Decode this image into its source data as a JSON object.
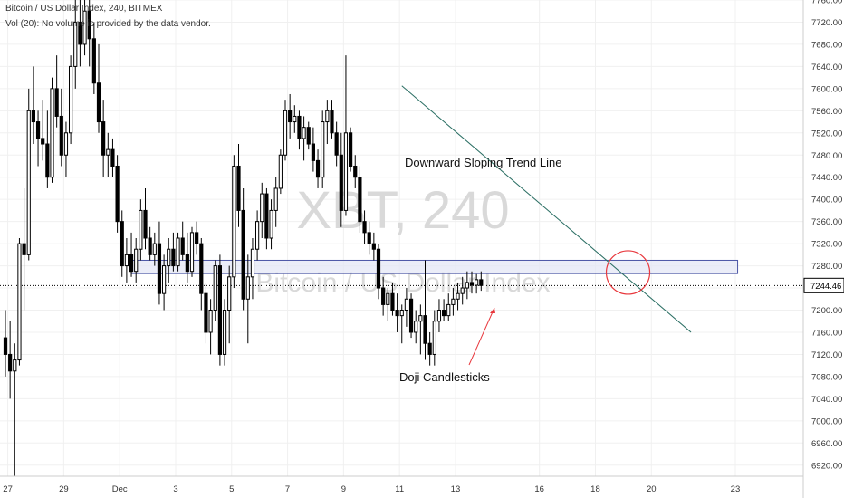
{
  "header": {
    "symbol_line": "Bitcoin / US Dollar Index, 240, BITMEX",
    "volume_line": "Vol (20): No volume is provided by the data vendor."
  },
  "watermark": {
    "ticker": "XBT, 240",
    "name": "Bitcoin / US Dollar Index"
  },
  "annotations": {
    "trend_line_label": "Downward Sloping Trend Line",
    "doji_label": "Doji Candlesticks"
  },
  "last_price": "7244.46",
  "colors": {
    "candle": "#000000",
    "trend_line": "#2a6e63",
    "support_zone_fill": "#e3e6f5",
    "support_zone_border": "#4a55a5",
    "circle": "#e8383d",
    "arrow": "#e8383d",
    "price_tag_bg": "#ffffff",
    "grid": "#f0f0f0",
    "axis_text": "#333333",
    "watermark": "#d9d9d9"
  },
  "chart_data": {
    "type": "candlestick",
    "timeframe": "240",
    "y_axis": {
      "ylim": [
        6900,
        7760
      ],
      "ticks": [
        6920,
        6960,
        7000,
        7040,
        7080,
        7120,
        7160,
        7200,
        7240,
        7280,
        7320,
        7360,
        7400,
        7440,
        7480,
        7520,
        7560,
        7600,
        7640,
        7680,
        7720,
        7760
      ]
    },
    "x_axis": {
      "ticks": [
        {
          "label": "27",
          "i": 0.5
        },
        {
          "label": "29",
          "i": 12.5
        },
        {
          "label": "Dec",
          "i": 24.5
        },
        {
          "label": "3",
          "i": 36.5
        },
        {
          "label": "5",
          "i": 48.5
        },
        {
          "label": "7",
          "i": 60.5
        },
        {
          "label": "9",
          "i": 72.5
        },
        {
          "label": "11",
          "i": 84.5
        },
        {
          "label": "13",
          "i": 96.5
        },
        {
          "label": "16",
          "i": 114.5
        },
        {
          "label": "18",
          "i": 126.5
        },
        {
          "label": "20",
          "i": 138.5
        },
        {
          "label": "23",
          "i": 156.5
        }
      ]
    },
    "candles": [
      [
        7150,
        7200,
        7080,
        7120
      ],
      [
        7120,
        7180,
        7040,
        7090
      ],
      [
        7090,
        7140,
        6900,
        7110
      ],
      [
        7110,
        7330,
        7100,
        7320
      ],
      [
        7320,
        7420,
        7200,
        7300
      ],
      [
        7300,
        7600,
        7290,
        7560
      ],
      [
        7560,
        7640,
        7500,
        7540
      ],
      [
        7540,
        7560,
        7460,
        7510
      ],
      [
        7510,
        7580,
        7470,
        7500
      ],
      [
        7500,
        7560,
        7420,
        7440
      ],
      [
        7440,
        7620,
        7430,
        7600
      ],
      [
        7600,
        7660,
        7530,
        7550
      ],
      [
        7550,
        7600,
        7460,
        7480
      ],
      [
        7480,
        7540,
        7440,
        7520
      ],
      [
        7520,
        7660,
        7500,
        7640
      ],
      [
        7640,
        7760,
        7600,
        7720
      ],
      [
        7720,
        7780,
        7640,
        7680
      ],
      [
        7680,
        7760,
        7660,
        7740
      ],
      [
        7740,
        7770,
        7640,
        7690
      ],
      [
        7690,
        7720,
        7590,
        7610
      ],
      [
        7610,
        7680,
        7520,
        7540
      ],
      [
        7540,
        7580,
        7440,
        7480
      ],
      [
        7480,
        7520,
        7440,
        7490
      ],
      [
        7490,
        7510,
        7440,
        7460
      ],
      [
        7460,
        7480,
        7340,
        7360
      ],
      [
        7360,
        7380,
        7260,
        7280
      ],
      [
        7280,
        7330,
        7250,
        7300
      ],
      [
        7300,
        7340,
        7260,
        7270
      ],
      [
        7270,
        7330,
        7250,
        7310
      ],
      [
        7310,
        7400,
        7290,
        7380
      ],
      [
        7380,
        7420,
        7310,
        7330
      ],
      [
        7330,
        7350,
        7290,
        7300
      ],
      [
        7300,
        7340,
        7280,
        7320
      ],
      [
        7320,
        7360,
        7210,
        7230
      ],
      [
        7230,
        7300,
        7200,
        7280
      ],
      [
        7280,
        7330,
        7250,
        7310
      ],
      [
        7310,
        7340,
        7270,
        7280
      ],
      [
        7280,
        7340,
        7270,
        7330
      ],
      [
        7330,
        7360,
        7290,
        7300
      ],
      [
        7300,
        7340,
        7250,
        7270
      ],
      [
        7270,
        7350,
        7260,
        7340
      ],
      [
        7340,
        7360,
        7300,
        7320
      ],
      [
        7320,
        7330,
        7200,
        7230
      ],
      [
        7230,
        7250,
        7140,
        7160
      ],
      [
        7160,
        7220,
        7120,
        7200
      ],
      [
        7200,
        7290,
        7180,
        7280
      ],
      [
        7280,
        7300,
        7100,
        7120
      ],
      [
        7120,
        7220,
        7100,
        7200
      ],
      [
        7200,
        7280,
        7140,
        7260
      ],
      [
        7260,
        7480,
        7240,
        7460
      ],
      [
        7460,
        7500,
        7350,
        7380
      ],
      [
        7380,
        7420,
        7200,
        7220
      ],
      [
        7220,
        7300,
        7140,
        7260
      ],
      [
        7260,
        7330,
        7220,
        7310
      ],
      [
        7310,
        7380,
        7290,
        7360
      ],
      [
        7360,
        7430,
        7330,
        7410
      ],
      [
        7410,
        7420,
        7310,
        7330
      ],
      [
        7330,
        7400,
        7310,
        7380
      ],
      [
        7380,
        7440,
        7350,
        7420
      ],
      [
        7420,
        7490,
        7410,
        7480
      ],
      [
        7480,
        7580,
        7470,
        7560
      ],
      [
        7560,
        7590,
        7510,
        7540
      ],
      [
        7540,
        7570,
        7520,
        7550
      ],
      [
        7550,
        7560,
        7490,
        7510
      ],
      [
        7510,
        7550,
        7470,
        7530
      ],
      [
        7530,
        7540,
        7490,
        7500
      ],
      [
        7500,
        7530,
        7450,
        7470
      ],
      [
        7470,
        7490,
        7420,
        7440
      ],
      [
        7440,
        7560,
        7420,
        7540
      ],
      [
        7540,
        7580,
        7500,
        7560
      ],
      [
        7560,
        7580,
        7510,
        7520
      ],
      [
        7520,
        7540,
        7460,
        7480
      ],
      [
        7480,
        7520,
        7350,
        7380
      ],
      [
        7380,
        7660,
        7370,
        7520
      ],
      [
        7520,
        7530,
        7450,
        7460
      ],
      [
        7460,
        7480,
        7420,
        7440
      ],
      [
        7440,
        7460,
        7340,
        7360
      ],
      [
        7360,
        7380,
        7320,
        7340
      ],
      [
        7340,
        7360,
        7300,
        7320
      ],
      [
        7320,
        7340,
        7290,
        7310
      ],
      [
        7310,
        7320,
        7220,
        7240
      ],
      [
        7240,
        7260,
        7190,
        7210
      ],
      [
        7210,
        7240,
        7180,
        7230
      ],
      [
        7230,
        7250,
        7190,
        7200
      ],
      [
        7200,
        7230,
        7160,
        7190
      ],
      [
        7190,
        7210,
        7140,
        7200
      ],
      [
        7200,
        7240,
        7170,
        7220
      ],
      [
        7220,
        7230,
        7150,
        7160
      ],
      [
        7160,
        7200,
        7140,
        7180
      ],
      [
        7180,
        7210,
        7120,
        7190
      ],
      [
        7190,
        7290,
        7110,
        7140
      ],
      [
        7140,
        7160,
        7100,
        7120
      ],
      [
        7120,
        7200,
        7100,
        7180
      ],
      [
        7180,
        7220,
        7160,
        7200
      ],
      [
        7200,
        7220,
        7180,
        7190
      ],
      [
        7190,
        7230,
        7180,
        7210
      ],
      [
        7210,
        7240,
        7190,
        7220
      ],
      [
        7220,
        7250,
        7200,
        7230
      ],
      [
        7230,
        7260,
        7210,
        7240
      ],
      [
        7240,
        7270,
        7220,
        7250
      ],
      [
        7250,
        7270,
        7230,
        7245
      ],
      [
        7245,
        7265,
        7230,
        7255
      ],
      [
        7255,
        7270,
        7235,
        7244.46
      ]
    ],
    "support_zone": {
      "y_low": 7266,
      "y_high": 7290,
      "i_start": 27,
      "i_end": 157
    },
    "trend_line": {
      "i1": 85,
      "y1": 7605,
      "i2": 147,
      "y2": 7160
    },
    "doji_circle": {
      "i": 133.5,
      "y": 7268
    },
    "last_price_line": 7244.46
  }
}
